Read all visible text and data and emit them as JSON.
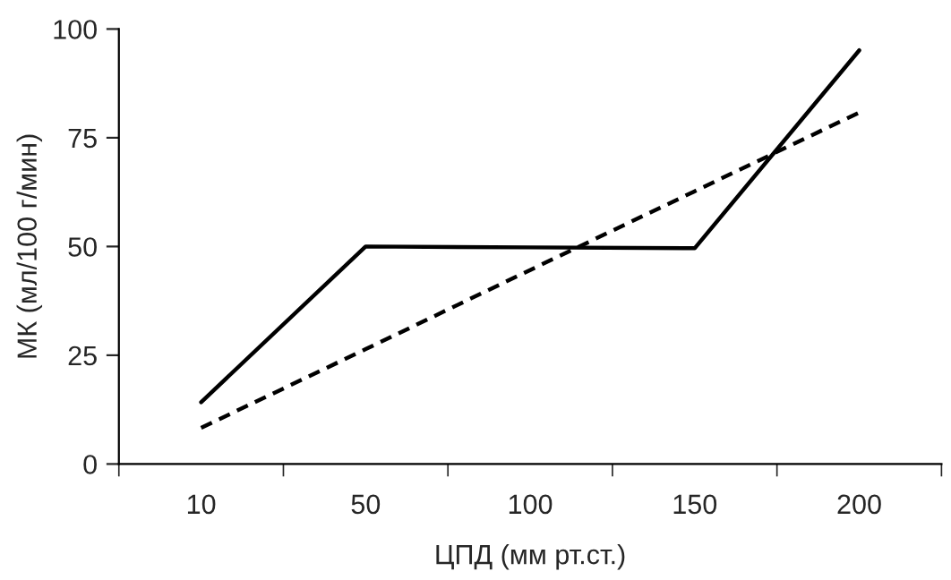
{
  "chart_data": {
    "type": "line",
    "xlabel": "ЦПД (мм рт.ст.)",
    "ylabel": "МК (мл/100 г/мин)",
    "categories": [
      "10",
      "50",
      "100",
      "150",
      "200"
    ],
    "series": [
      {
        "color": "#000000",
        "line_style": "solid",
        "values": [
          14.2,
          50,
          49.8,
          49.6,
          95.1
        ]
      },
      {
        "color": "#000000",
        "line_style": "dashed",
        "values": [
          8.3,
          26.4,
          44.6,
          62.7,
          80.8
        ]
      }
    ],
    "ylim": [
      0,
      100
    ],
    "yticks": [
      0,
      25,
      50,
      75,
      100
    ],
    "grid": false
  }
}
